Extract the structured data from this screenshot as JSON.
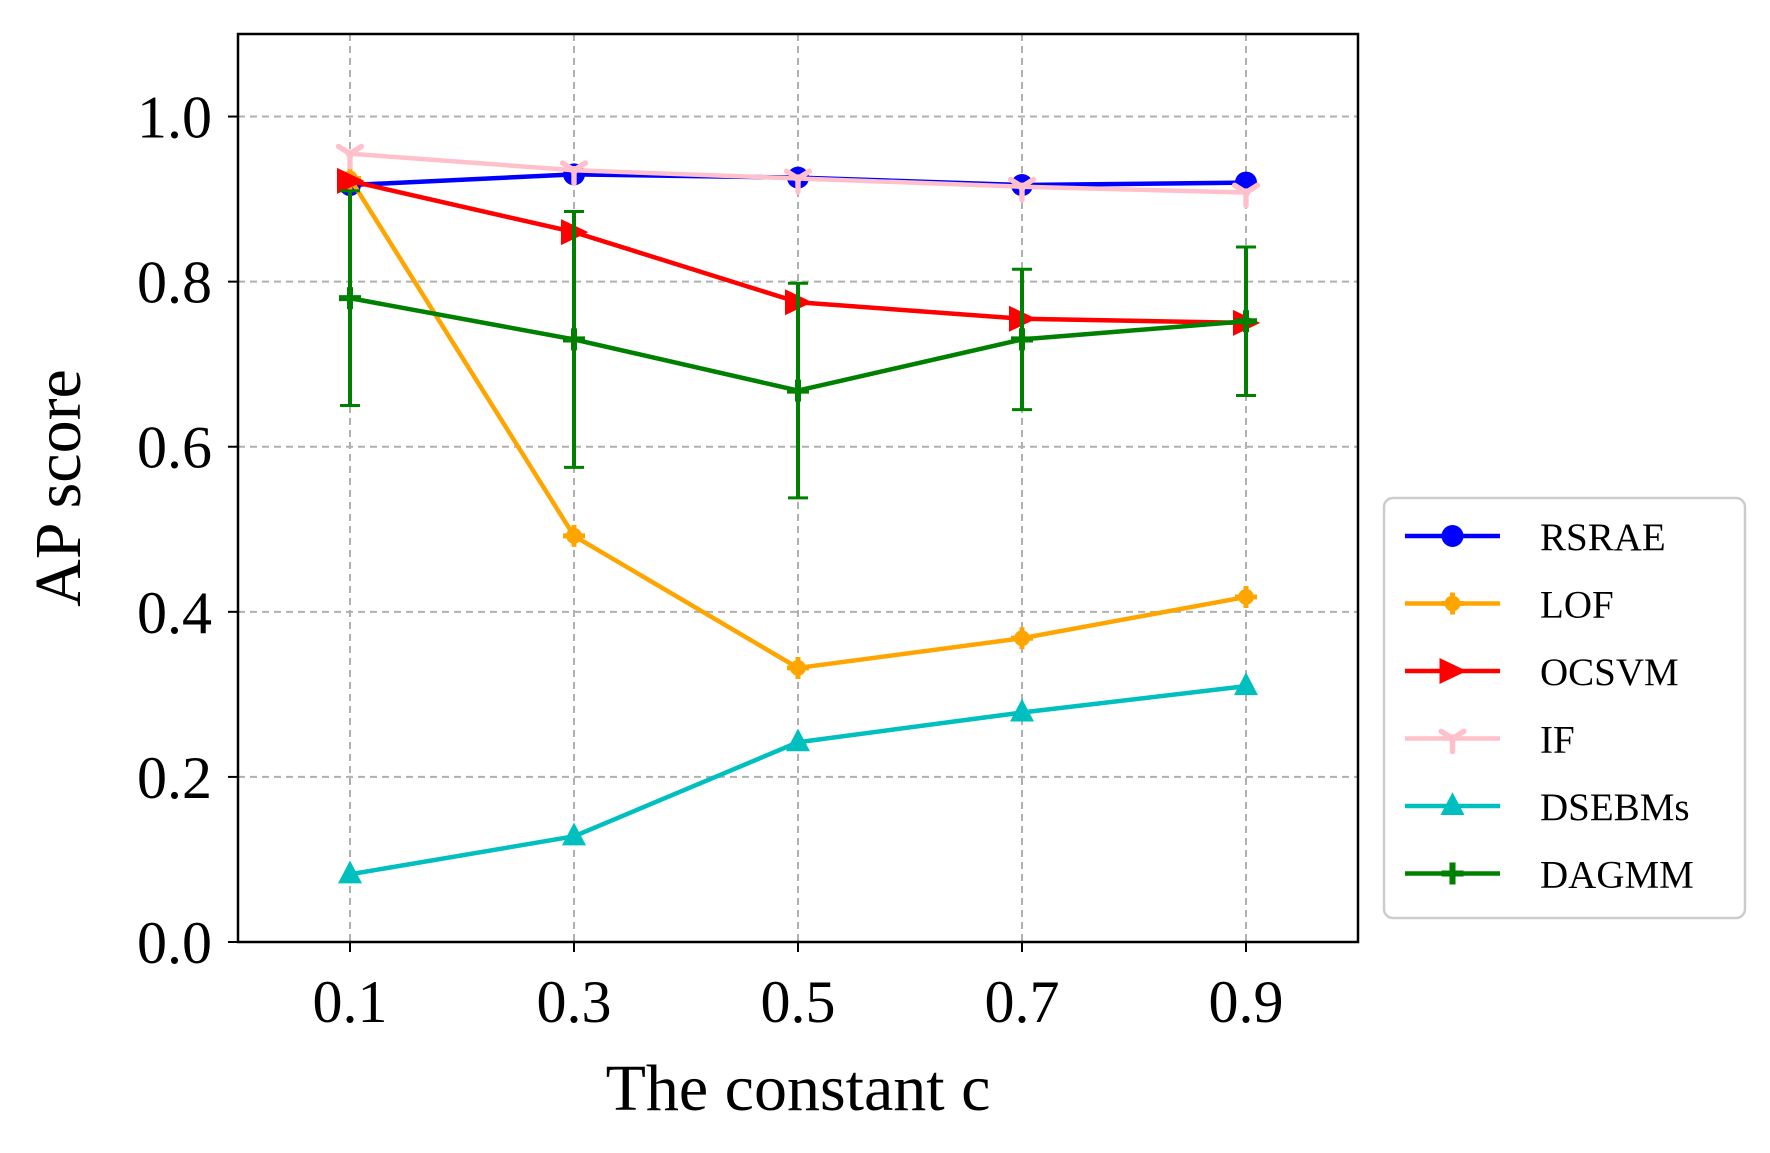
{
  "chart_data": {
    "type": "line",
    "title": "",
    "xlabel": "The constant c",
    "ylabel": "AP score",
    "x": [
      0.1,
      0.3,
      0.5,
      0.7,
      0.9
    ],
    "x_tick_labels": [
      "0.1",
      "0.3",
      "0.5",
      "0.7",
      "0.9"
    ],
    "y_ticks": [
      0.0,
      0.2,
      0.4,
      0.6,
      0.8,
      1.0
    ],
    "y_tick_labels": [
      "0.0",
      "0.2",
      "0.4",
      "0.6",
      "0.8",
      "1.0"
    ],
    "xlim": [
      0.0,
      1.0
    ],
    "ylim": [
      0.0,
      1.1
    ],
    "grid": true,
    "legend_position": "right-outside",
    "series": [
      {
        "name": "RSRAE",
        "color": "#0000ff",
        "marker": "circle",
        "values": [
          0.917,
          0.93,
          0.926,
          0.917,
          0.92
        ]
      },
      {
        "name": "LOF",
        "color": "#ffa500",
        "marker": "plus-filled",
        "values": [
          0.925,
          0.492,
          0.332,
          0.368,
          0.418
        ]
      },
      {
        "name": "OCSVM",
        "color": "#ff0000",
        "marker": "triangle-right",
        "values": [
          0.922,
          0.86,
          0.775,
          0.755,
          0.75
        ]
      },
      {
        "name": "IF",
        "color": "#ffc0cb",
        "marker": "tri-down",
        "values": [
          0.955,
          0.935,
          0.925,
          0.915,
          0.908
        ]
      },
      {
        "name": "DSEBMs",
        "color": "#00bfbf",
        "marker": "triangle-up",
        "values": [
          0.082,
          0.128,
          0.242,
          0.278,
          0.31
        ]
      },
      {
        "name": "DAGMM",
        "color": "#008000",
        "marker": "plus",
        "values": [
          0.78,
          0.73,
          0.668,
          0.73,
          0.752
        ],
        "errors": [
          0.13,
          0.155,
          0.13,
          0.085,
          0.09
        ]
      }
    ]
  }
}
